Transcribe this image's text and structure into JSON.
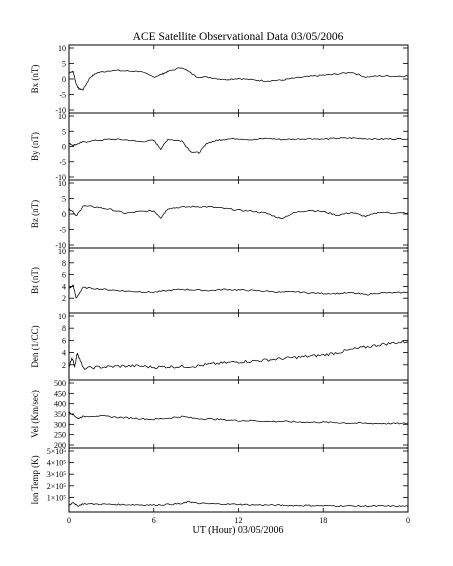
{
  "figure": {
    "title": "ACE Satellite Observational Data   03/05/2006",
    "xlabel": "UT (Hour)   03/05/2006"
  },
  "chart_data": [
    {
      "type": "line",
      "ylabel": "Bx (nT)",
      "xlim": [
        0,
        24
      ],
      "ylim": [
        -10,
        10
      ],
      "yticks": [
        "-10",
        "-5",
        "0",
        "5",
        "10"
      ],
      "yticks_v": [
        -10,
        -5,
        0,
        5,
        10
      ],
      "xticks": [
        "0",
        "6",
        "12",
        "18",
        "0"
      ],
      "series": [
        {
          "x": [
            0,
            0.3,
            0.5,
            0.7,
            1.0,
            1.5,
            2.0,
            3.0,
            4.0,
            5.0,
            6.0,
            6.6,
            7.0,
            8.0,
            9.0,
            10.0,
            11.0,
            12.0,
            13.0,
            14.0,
            15.0,
            16.0,
            17.0,
            18.0,
            19.0,
            20.0,
            21.0,
            22.0,
            23.0,
            24.0
          ],
          "y": [
            2.2,
            2.4,
            -1.5,
            -3.2,
            -3.4,
            0.6,
            2.0,
            2.8,
            2.6,
            2.5,
            0.6,
            1.6,
            2.4,
            3.8,
            0.8,
            0.5,
            -0.2,
            0.2,
            -0.3,
            -0.6,
            -0.4,
            0.3,
            0.8,
            1.2,
            1.6,
            2.2,
            0.6,
            1.0,
            0.9,
            1.0
          ]
        }
      ]
    },
    {
      "type": "line",
      "ylabel": "By (nT)",
      "xlim": [
        0,
        24
      ],
      "ylim": [
        -10,
        10
      ],
      "yticks": [
        "-10",
        "-5",
        "0",
        "5",
        "10"
      ],
      "yticks_v": [
        -10,
        -5,
        0,
        5,
        10
      ],
      "xticks": [
        "0",
        "6",
        "12",
        "18",
        "0"
      ],
      "series": [
        {
          "x": [
            0,
            0.3,
            0.6,
            1.0,
            2.0,
            3.0,
            4.0,
            5.0,
            6.0,
            6.5,
            7.0,
            8.0,
            8.6,
            9.2,
            9.8,
            10.5,
            11.0,
            12.0,
            13.0,
            14.0,
            15.0,
            16.0,
            17.0,
            18.0,
            19.0,
            20.0,
            21.0,
            22.0,
            23.0,
            24.0
          ],
          "y": [
            1.0,
            0.4,
            0.8,
            1.5,
            2.0,
            2.4,
            2.2,
            1.6,
            2.0,
            -0.8,
            2.4,
            1.8,
            -1.6,
            -2.1,
            1.2,
            2.0,
            2.4,
            2.6,
            2.2,
            2.7,
            2.3,
            2.4,
            2.6,
            2.4,
            2.7,
            2.8,
            2.6,
            2.4,
            2.5,
            2.5
          ]
        }
      ]
    },
    {
      "type": "line",
      "ylabel": "Bz (nT)",
      "xlim": [
        0,
        24
      ],
      "ylim": [
        -10,
        10
      ],
      "yticks": [
        "-10",
        "-5",
        "0",
        "5",
        "10"
      ],
      "yticks_v": [
        -10,
        -5,
        0,
        5,
        10
      ],
      "xticks": [
        "0",
        "6",
        "12",
        "18",
        "0"
      ],
      "series": [
        {
          "x": [
            0,
            0.3,
            0.5,
            1.0,
            2.0,
            3.0,
            4.0,
            5.0,
            6.0,
            6.5,
            7.0,
            8.0,
            9.0,
            10.0,
            11.0,
            12.0,
            13.0,
            14.0,
            15.0,
            16.0,
            17.0,
            18.0,
            19.0,
            20.0,
            21.0,
            22.0,
            23.0,
            24.0
          ],
          "y": [
            1.5,
            0.8,
            -0.8,
            2.6,
            2.2,
            1.4,
            0.2,
            0.8,
            1.0,
            -1.2,
            1.8,
            2.2,
            2.4,
            2.3,
            1.8,
            1.2,
            0.9,
            0.2,
            -1.5,
            0.5,
            1.2,
            0.8,
            -0.4,
            0.5,
            -0.8,
            0.6,
            0.3,
            0.3
          ]
        }
      ]
    },
    {
      "type": "line",
      "ylabel": "Bt (nT)",
      "xlim": [
        0,
        24
      ],
      "ylim": [
        0,
        10
      ],
      "yticks": [
        "2",
        "4",
        "6",
        "8",
        "10"
      ],
      "yticks_v": [
        2,
        4,
        6,
        8,
        10
      ],
      "xticks": [
        "0",
        "6",
        "12",
        "18",
        "0"
      ],
      "series": [
        {
          "x": [
            0,
            0.3,
            0.5,
            1.0,
            2.0,
            3.0,
            4.0,
            5.0,
            6.0,
            7.0,
            8.0,
            9.0,
            10.0,
            11.0,
            12.0,
            13.0,
            14.0,
            15.0,
            16.0,
            17.0,
            18.0,
            19.0,
            20.0,
            21.0,
            22.0,
            23.0,
            24.0
          ],
          "y": [
            3.6,
            4.2,
            2.0,
            3.8,
            3.6,
            3.4,
            3.2,
            3.1,
            3.0,
            3.3,
            3.5,
            3.4,
            3.3,
            3.5,
            3.4,
            3.3,
            3.2,
            3.0,
            3.1,
            2.9,
            2.8,
            2.8,
            2.9,
            2.6,
            2.9,
            2.9,
            3.0
          ]
        }
      ]
    },
    {
      "type": "line",
      "ylabel": "Den (1/CC)",
      "xlim": [
        0,
        24
      ],
      "ylim": [
        0,
        10
      ],
      "yticks": [
        "2",
        "4",
        "6",
        "8",
        "10"
      ],
      "yticks_v": [
        2,
        4,
        6,
        8,
        10
      ],
      "xticks": [
        "0",
        "6",
        "12",
        "18",
        "0"
      ],
      "series": [
        {
          "x": [
            0,
            0.2,
            0.4,
            0.6,
            1.0,
            2.0,
            3.0,
            4.0,
            5.0,
            6.0,
            7.0,
            8.0,
            9.0,
            10.0,
            11.0,
            12.0,
            13.0,
            14.0,
            15.0,
            16.0,
            17.0,
            18.0,
            19.0,
            20.0,
            21.0,
            22.0,
            23.0,
            24.0
          ],
          "y": [
            1.5,
            3.2,
            1.8,
            4.0,
            1.4,
            1.6,
            1.7,
            1.8,
            1.8,
            1.6,
            1.7,
            1.7,
            1.8,
            2.1,
            2.3,
            2.5,
            2.6,
            2.8,
            3.0,
            3.2,
            3.4,
            3.6,
            4.0,
            4.5,
            4.9,
            5.3,
            5.6,
            5.8
          ]
        }
      ]
    },
    {
      "type": "line",
      "ylabel": "Vel (Km/sec)",
      "xlim": [
        0,
        24
      ],
      "ylim": [
        200,
        500
      ],
      "yticks": [
        "200",
        "250",
        "300",
        "350",
        "400",
        "450",
        "500"
      ],
      "yticks_v": [
        200,
        250,
        300,
        350,
        400,
        450,
        500
      ],
      "xticks": [
        "0",
        "6",
        "12",
        "18",
        "0"
      ],
      "series": [
        {
          "x": [
            0,
            0.3,
            0.6,
            1.0,
            2.0,
            3.0,
            4.0,
            5.0,
            6.0,
            7.0,
            8.0,
            9.0,
            10.0,
            11.0,
            12.0,
            13.0,
            14.0,
            15.0,
            16.0,
            17.0,
            18.0,
            19.0,
            20.0,
            21.0,
            22.0,
            23.0,
            24.0
          ],
          "y": [
            358,
            348,
            328,
            338,
            342,
            336,
            332,
            328,
            324,
            330,
            338,
            328,
            326,
            322,
            318,
            318,
            314,
            314,
            312,
            310,
            310,
            308,
            306,
            305,
            304,
            304,
            304
          ]
        }
      ]
    },
    {
      "type": "line",
      "ylabel": "Ion Temp (K)",
      "xlim": [
        0,
        24
      ],
      "ylim": [
        0,
        500000
      ],
      "yticks": [
        "1×10⁵",
        "2×10⁵",
        "3×10⁵",
        "4×10⁵",
        "5×10⁵"
      ],
      "yticks_v": [
        100000,
        200000,
        300000,
        400000,
        500000
      ],
      "xticks": [
        "0",
        "6",
        "12",
        "18",
        "0"
      ],
      "series": [
        {
          "x": [
            0,
            0.3,
            0.6,
            1.0,
            2.0,
            3.0,
            4.0,
            5.0,
            6.0,
            7.0,
            8.0,
            8.5,
            9.0,
            10.0,
            11.0,
            12.0,
            13.0,
            14.0,
            15.0,
            16.0,
            17.0,
            18.0,
            19.0,
            20.0,
            21.0,
            22.0,
            23.0,
            24.0
          ],
          "y": [
            30000,
            60000,
            25000,
            45000,
            42000,
            40000,
            38000,
            36000,
            34000,
            40000,
            45000,
            65000,
            50000,
            45000,
            42000,
            40000,
            36000,
            34000,
            32000,
            30000,
            30000,
            28000,
            27000,
            26000,
            25000,
            25000,
            24000,
            24000
          ]
        }
      ]
    }
  ]
}
